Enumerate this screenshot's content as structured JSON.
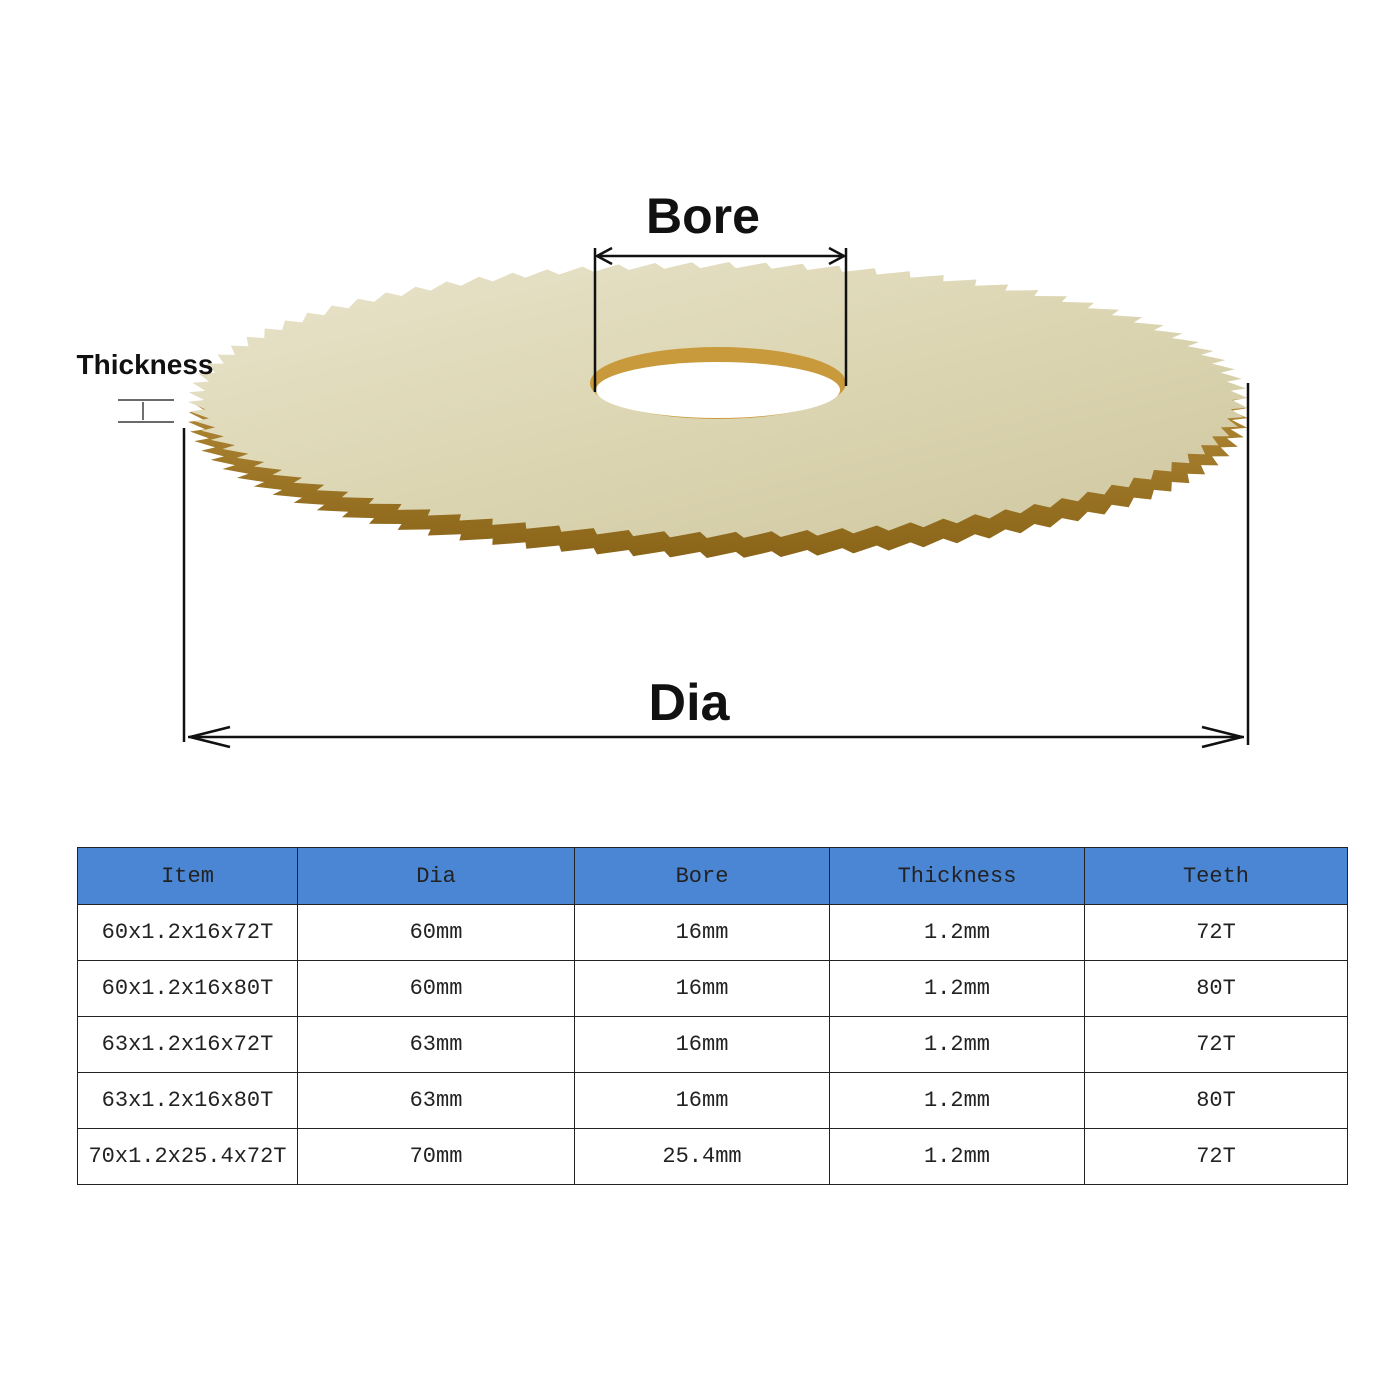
{
  "labels": {
    "bore": "Bore",
    "dia": "Dia",
    "thickness": "Thickness"
  },
  "table": {
    "header": [
      "Item",
      "Dia",
      "Bore",
      "Thickness",
      "Teeth"
    ],
    "rows": [
      [
        "60x1.2x16x72T",
        "60mm",
        "16mm",
        "1.2mm",
        "72T"
      ],
      [
        "60x1.2x16x80T",
        "60mm",
        "16mm",
        "1.2mm",
        "80T"
      ],
      [
        "63x1.2x16x72T",
        "63mm",
        "16mm",
        "1.2mm",
        "72T"
      ],
      [
        "63x1.2x16x80T",
        "63mm",
        "16mm",
        "1.2mm",
        "80T"
      ],
      [
        "70x1.2x25.4x72T",
        "70mm",
        "25.4mm",
        "1.2mm",
        "72T"
      ]
    ]
  }
}
